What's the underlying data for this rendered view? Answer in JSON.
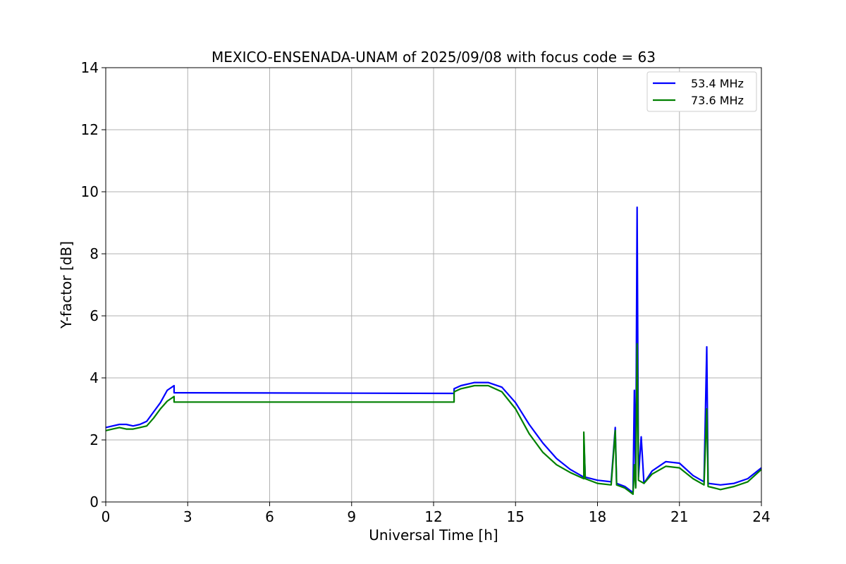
{
  "chart_data": {
    "type": "line",
    "title": "MEXICO-ENSENADA-UNAM of 2025/09/08 with focus code = 63",
    "xlabel": "Universal Time [h]",
    "ylabel": "Y-factor [dB]",
    "xlim": [
      0,
      24
    ],
    "ylim": [
      0,
      14
    ],
    "xticks": [
      0,
      3,
      6,
      9,
      12,
      15,
      18,
      21,
      24
    ],
    "yticks": [
      0,
      2,
      4,
      6,
      8,
      10,
      12,
      14
    ],
    "grid": true,
    "legend_position": "top-right",
    "series": [
      {
        "name": "53.4 MHz",
        "color": "#0000ff",
        "points": [
          [
            0.0,
            2.4
          ],
          [
            0.25,
            2.45
          ],
          [
            0.5,
            2.5
          ],
          [
            0.75,
            2.5
          ],
          [
            1.0,
            2.45
          ],
          [
            1.25,
            2.5
          ],
          [
            1.5,
            2.6
          ],
          [
            1.75,
            2.9
          ],
          [
            2.0,
            3.2
          ],
          [
            2.25,
            3.6
          ],
          [
            2.5,
            3.75
          ],
          [
            2.5,
            3.52
          ],
          [
            12.75,
            3.5
          ],
          [
            12.75,
            3.65
          ],
          [
            13.0,
            3.75
          ],
          [
            13.5,
            3.85
          ],
          [
            14.0,
            3.85
          ],
          [
            14.5,
            3.7
          ],
          [
            15.0,
            3.2
          ],
          [
            15.5,
            2.5
          ],
          [
            16.0,
            1.9
          ],
          [
            16.5,
            1.4
          ],
          [
            17.0,
            1.05
          ],
          [
            17.5,
            0.8
          ],
          [
            17.5,
            2.1
          ],
          [
            17.55,
            0.8
          ],
          [
            18.0,
            0.7
          ],
          [
            18.5,
            0.65
          ],
          [
            18.65,
            2.4
          ],
          [
            18.7,
            0.6
          ],
          [
            19.0,
            0.5
          ],
          [
            19.3,
            0.3
          ],
          [
            19.35,
            3.6
          ],
          [
            19.4,
            0.5
          ],
          [
            19.45,
            9.5
          ],
          [
            19.5,
            0.8
          ],
          [
            19.6,
            2.1
          ],
          [
            19.7,
            0.6
          ],
          [
            20.0,
            1.0
          ],
          [
            20.5,
            1.3
          ],
          [
            21.0,
            1.25
          ],
          [
            21.5,
            0.85
          ],
          [
            21.9,
            0.65
          ],
          [
            22.0,
            5.0
          ],
          [
            22.05,
            0.6
          ],
          [
            22.5,
            0.55
          ],
          [
            23.0,
            0.6
          ],
          [
            23.5,
            0.75
          ],
          [
            24.0,
            1.1
          ]
        ]
      },
      {
        "name": "73.6 MHz",
        "color": "#008000",
        "points": [
          [
            0.0,
            2.3
          ],
          [
            0.25,
            2.35
          ],
          [
            0.5,
            2.4
          ],
          [
            0.75,
            2.35
          ],
          [
            1.0,
            2.35
          ],
          [
            1.25,
            2.4
          ],
          [
            1.5,
            2.45
          ],
          [
            1.75,
            2.7
          ],
          [
            2.0,
            3.0
          ],
          [
            2.25,
            3.25
          ],
          [
            2.5,
            3.4
          ],
          [
            2.5,
            3.22
          ],
          [
            12.75,
            3.22
          ],
          [
            12.75,
            3.55
          ],
          [
            13.0,
            3.65
          ],
          [
            13.5,
            3.75
          ],
          [
            14.0,
            3.75
          ],
          [
            14.5,
            3.55
          ],
          [
            15.0,
            3.0
          ],
          [
            15.5,
            2.2
          ],
          [
            16.0,
            1.6
          ],
          [
            16.5,
            1.2
          ],
          [
            17.0,
            0.95
          ],
          [
            17.5,
            0.75
          ],
          [
            17.5,
            2.25
          ],
          [
            17.55,
            0.75
          ],
          [
            18.0,
            0.6
          ],
          [
            18.5,
            0.55
          ],
          [
            18.65,
            2.3
          ],
          [
            18.7,
            0.55
          ],
          [
            19.0,
            0.45
          ],
          [
            19.3,
            0.25
          ],
          [
            19.35,
            1.2
          ],
          [
            19.4,
            0.45
          ],
          [
            19.45,
            5.1
          ],
          [
            19.5,
            0.7
          ],
          [
            19.7,
            0.6
          ],
          [
            20.0,
            0.9
          ],
          [
            20.5,
            1.15
          ],
          [
            21.0,
            1.1
          ],
          [
            21.5,
            0.75
          ],
          [
            21.9,
            0.55
          ],
          [
            22.0,
            3.0
          ],
          [
            22.05,
            0.5
          ],
          [
            22.5,
            0.4
          ],
          [
            23.0,
            0.5
          ],
          [
            23.5,
            0.65
          ],
          [
            24.0,
            1.05
          ]
        ]
      }
    ]
  }
}
